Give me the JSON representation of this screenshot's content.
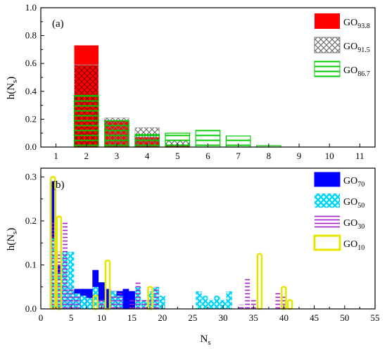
{
  "colors": {
    "GO93.8": "#ff0000",
    "GO91.5": "#808080",
    "GO86.7": "#00c800",
    "GO70": "#0000ff",
    "GO50": "#00e0ff",
    "GO30": "#a020c8",
    "GO10": "#e6e600"
  },
  "chart_data": [
    {
      "type": "bar",
      "panel_label": "(a)",
      "xlabel": "",
      "ylabel": "h(N",
      "ylabel_sub": "s",
      "ylabel_close": ")",
      "x_ticks": [
        1,
        2,
        3,
        4,
        5,
        6,
        7,
        8,
        9,
        10,
        11
      ],
      "xlim": [
        0.5,
        11.5
      ],
      "ylim": [
        0,
        1.0
      ],
      "y_ticks": [
        "0.0",
        "0.2",
        "0.4",
        "0.6",
        "0.8",
        "1.0"
      ],
      "legend_position": "top-right",
      "categories": [
        2,
        3,
        4,
        5,
        6,
        7,
        8
      ],
      "series": [
        {
          "name": "GO",
          "sub": "93.8",
          "values": [
            0.73,
            0.19,
            0.07,
            0.01,
            0.0,
            0.0,
            0.0
          ]
        },
        {
          "name": "GO",
          "sub": "91.5",
          "values": [
            0.59,
            0.21,
            0.14,
            0.05,
            0.0,
            0.0,
            0.0
          ]
        },
        {
          "name": "GO",
          "sub": "86.7",
          "values": [
            0.37,
            0.19,
            0.09,
            0.1,
            0.12,
            0.08,
            0.01
          ]
        }
      ]
    },
    {
      "type": "bar",
      "panel_label": "(b)",
      "xlabel": "N",
      "xlabel_sub": "s",
      "ylabel": "h(N",
      "ylabel_sub": "s",
      "ylabel_close": ")",
      "xlim": [
        0,
        55
      ],
      "ylim": [
        0,
        0.32
      ],
      "x_ticks": [
        0,
        5,
        10,
        15,
        20,
        25,
        30,
        35,
        40,
        45,
        50,
        55
      ],
      "y_ticks": [
        "0.0",
        "0.1",
        "0.2",
        "0.3"
      ],
      "legend_position": "top-right",
      "series": [
        {
          "name": "GO",
          "sub": "70",
          "x": [
            2,
            3,
            4,
            5,
            6,
            7,
            8,
            9,
            10,
            11,
            12,
            13,
            14,
            15
          ],
          "values": [
            0.29,
            0.1,
            0.05,
            0.04,
            0.045,
            0.045,
            0.045,
            0.088,
            0.06,
            0.045,
            0.04,
            0.04,
            0.045,
            0.04
          ]
        },
        {
          "name": "GO",
          "sub": "50",
          "x": [
            2,
            3,
            4,
            5,
            6,
            7,
            8,
            9,
            10,
            12,
            13,
            16,
            17,
            18,
            19,
            20,
            26,
            27,
            28,
            29,
            30,
            31
          ],
          "values": [
            0.16,
            0.08,
            0.13,
            0.13,
            0.035,
            0.03,
            0.025,
            0.05,
            0.02,
            0.04,
            0.03,
            0.05,
            0.02,
            0.04,
            0.05,
            0.03,
            0.04,
            0.03,
            0.02,
            0.03,
            0.02,
            0.04
          ]
        },
        {
          "name": "GO",
          "sub": "30",
          "x": [
            2,
            3,
            4,
            5,
            6,
            10,
            12,
            13,
            15,
            16,
            17,
            18,
            19,
            33,
            34,
            35,
            39,
            40
          ],
          "values": [
            0.2,
            0.13,
            0.2,
            0.05,
            0.03,
            0.02,
            0.03,
            0.04,
            0.02,
            0.065,
            0.025,
            0.02,
            0.05,
            0.01,
            0.07,
            0.02,
            0.04,
            0.03
          ]
        },
        {
          "name": "GO",
          "sub": "10",
          "x": [
            2,
            3,
            9,
            11,
            18,
            36,
            40,
            41
          ],
          "values": [
            0.3,
            0.21,
            0.03,
            0.11,
            0.05,
            0.125,
            0.05,
            0.02
          ]
        }
      ]
    }
  ]
}
